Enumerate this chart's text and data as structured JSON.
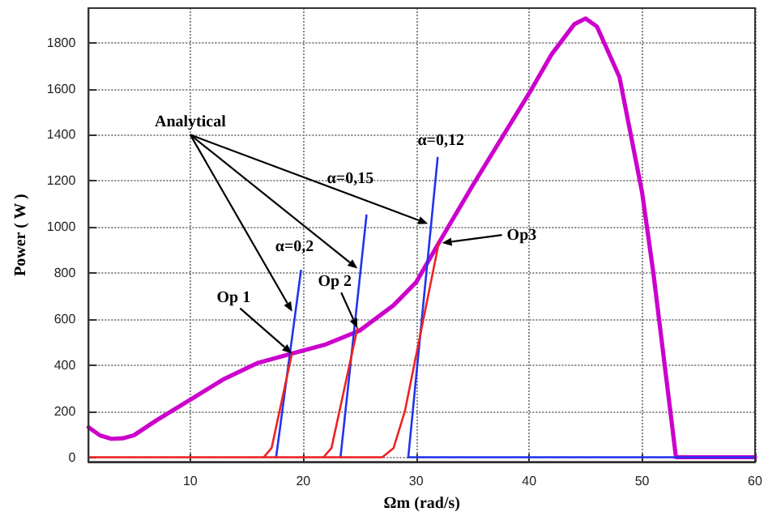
{
  "chart_data": {
    "type": "line",
    "xlabel": "Ωm (rad/s)",
    "ylabel": "Power ( W )",
    "xlim": [
      1,
      60
    ],
    "xticks": [
      10,
      20,
      30,
      40,
      50,
      60
    ],
    "ylim": [
      -20,
      1950
    ],
    "yticks": [
      0,
      200,
      400,
      600,
      800,
      1000,
      1200,
      1400,
      1600,
      1800
    ],
    "grid": true,
    "marker": "none",
    "series": [
      {
        "color": "#cc00cc",
        "x": [
          1,
          2,
          3,
          4,
          5,
          7,
          10,
          13,
          16,
          19,
          22,
          25,
          28,
          30,
          32,
          35,
          38,
          40,
          42,
          44,
          45,
          46,
          48,
          50,
          51,
          52,
          53,
          60
        ],
        "values": [
          130,
          95,
          80,
          82,
          95,
          160,
          250,
          340,
          410,
          450,
          490,
          550,
          660,
          760,
          930,
          1180,
          1420,
          1580,
          1750,
          1880,
          1905,
          1870,
          1650,
          1150,
          800,
          400,
          0,
          0
        ]
      },
      {
        "color": "#2233ee",
        "x": [
          17.6,
          19.8
        ],
        "values": [
          0,
          810
        ]
      },
      {
        "color": "#2233ee",
        "x": [
          23.3,
          25.6
        ],
        "values": [
          0,
          1050
        ]
      },
      {
        "color": "#2233ee",
        "x": [
          60,
          29.3,
          31.9
        ],
        "values": [
          0,
          0,
          1300
        ]
      },
      {
        "color": "#ee2222",
        "x": [
          1,
          16.5,
          17.2,
          19
        ],
        "values": [
          0,
          0,
          40,
          450
        ]
      },
      {
        "color": "#ee2222",
        "x": [
          16.5,
          21.8,
          22.5,
          24.8
        ],
        "values": [
          0,
          0,
          40,
          560
        ]
      },
      {
        "color": "#ee2222",
        "x": [
          21.8,
          27,
          28,
          29,
          32
        ],
        "values": [
          0,
          0,
          40,
          200,
          930
        ]
      }
    ],
    "annotations": [
      "Analytical",
      {
        "text": "α=0,2",
        "x": 19.8,
        "y": 810
      },
      {
        "text": "α=0,15",
        "x": 25.6,
        "y": 1050
      },
      {
        "text": "α=0,12",
        "x": 31.9,
        "y": 1300
      },
      {
        "text": "Op 1",
        "x": 19,
        "y": 450
      },
      {
        "text": "Op 2",
        "x": 24.8,
        "y": 560
      },
      {
        "text": "Op3",
        "x": 32,
        "y": 930
      }
    ]
  }
}
